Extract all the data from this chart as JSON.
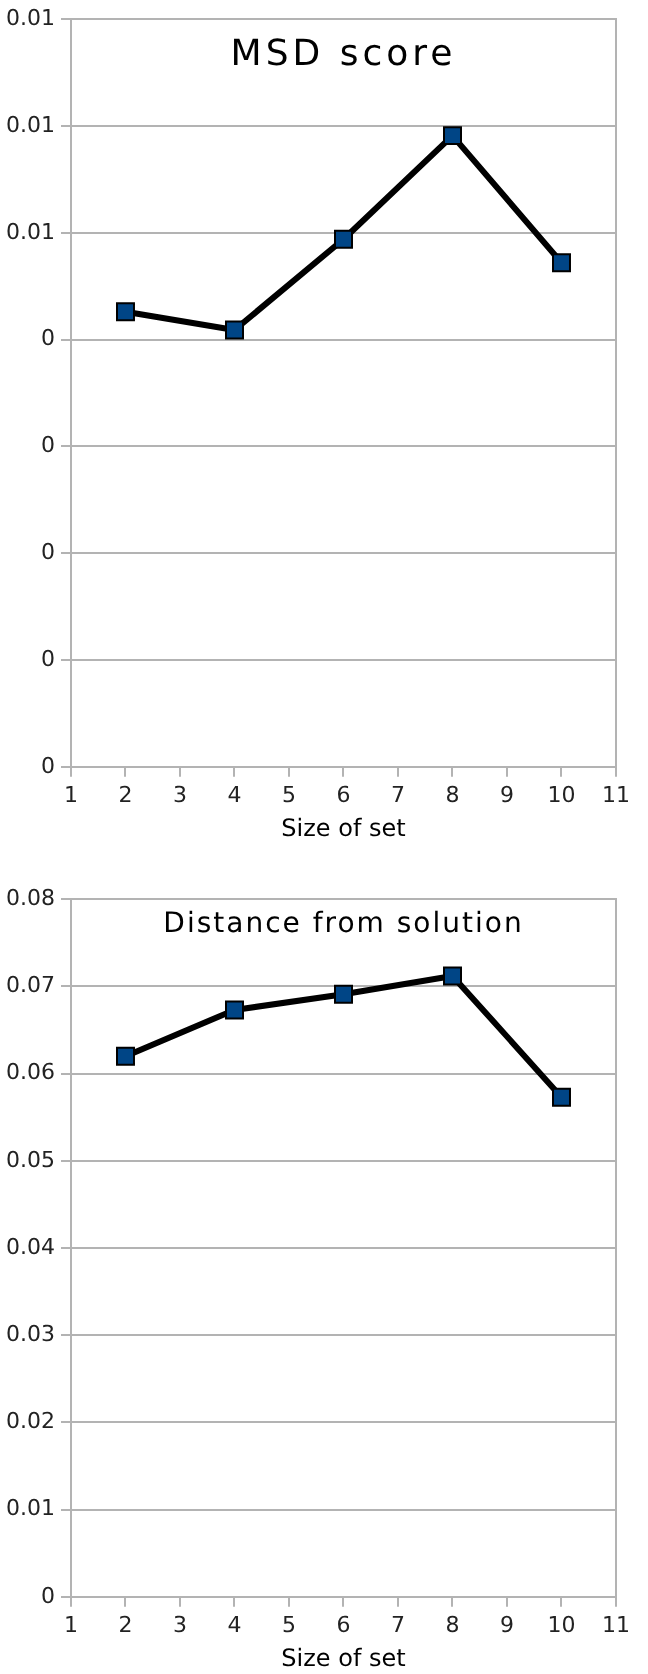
{
  "chart_data": [
    {
      "type": "line",
      "title": "MSD score",
      "xlabel": "Size of set",
      "x": [
        2,
        4,
        6,
        8,
        10
      ],
      "series": [
        {
          "color": "#004586",
          "values": [
            0.00426,
            0.00409,
            0.00494,
            0.00591,
            0.00472
          ]
        }
      ],
      "xlim": [
        1,
        11
      ],
      "xticks": [
        1,
        2,
        3,
        4,
        5,
        6,
        7,
        8,
        9,
        10,
        11
      ],
      "ylim": [
        0,
        0.007
      ],
      "yticks": [
        {
          "value": 0,
          "label": "0"
        },
        {
          "value": 0.001,
          "label": "0"
        },
        {
          "value": 0.002,
          "label": "0"
        },
        {
          "value": 0.003,
          "label": "0"
        },
        {
          "value": 0.004,
          "label": "0"
        },
        {
          "value": 0.005,
          "label": "0.01"
        },
        {
          "value": 0.006,
          "label": "0.01"
        },
        {
          "value": 0.007,
          "label": "0.01"
        }
      ],
      "grid": "y",
      "legend": false,
      "marker": "square",
      "line_style": "solid"
    },
    {
      "type": "line",
      "title": "Distance from solution",
      "xlabel": "Size of set",
      "x": [
        2,
        4,
        6,
        8,
        10
      ],
      "series": [
        {
          "color": "#004586",
          "values": [
            0.062,
            0.0673,
            0.0691,
            0.0712,
            0.0573
          ]
        }
      ],
      "xlim": [
        1,
        11
      ],
      "xticks": [
        1,
        2,
        3,
        4,
        5,
        6,
        7,
        8,
        9,
        10,
        11
      ],
      "ylim": [
        0,
        0.08
      ],
      "yticks": [
        0,
        0.01,
        0.02,
        0.03,
        0.04,
        0.05,
        0.06,
        0.07,
        0.08
      ],
      "grid": "y",
      "legend": false,
      "marker": "square",
      "line_style": "solid"
    }
  ]
}
